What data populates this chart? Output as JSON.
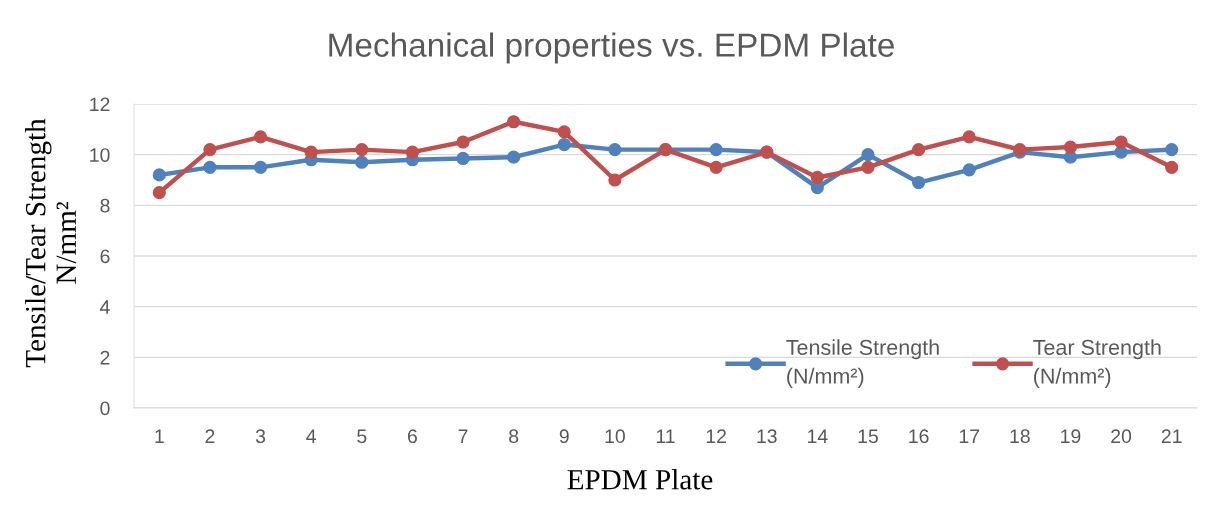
{
  "chart_data": {
    "type": "line",
    "title": "Mechanical properties vs. EPDM Plate",
    "xlabel": "EPDM Plate",
    "ylabel": "Tensile/Tear Strength\nN/mm²",
    "categories": [
      "1",
      "2",
      "3",
      "4",
      "5",
      "6",
      "7",
      "8",
      "9",
      "10",
      "11",
      "12",
      "13",
      "14",
      "15",
      "16",
      "17",
      "18",
      "19",
      "20",
      "21"
    ],
    "series": [
      {
        "name": "Tensile Strength\n(N/mm²)",
        "color": "#4f81bd",
        "values": [
          9.2,
          9.5,
          9.5,
          9.8,
          9.7,
          9.8,
          9.85,
          9.9,
          10.4,
          10.2,
          10.2,
          10.2,
          10.1,
          8.7,
          10.0,
          8.9,
          9.4,
          10.1,
          9.9,
          10.1,
          10.2
        ]
      },
      {
        "name": "Tear Strength\n(N/mm²)",
        "color": "#c0504d",
        "values": [
          8.5,
          10.2,
          10.7,
          10.1,
          10.2,
          10.1,
          10.5,
          11.3,
          10.9,
          9.0,
          10.2,
          9.5,
          10.1,
          9.1,
          9.5,
          10.2,
          10.7,
          10.2,
          10.3,
          10.5,
          9.5
        ]
      }
    ],
    "ylim": [
      0,
      12
    ],
    "yticks": [
      0,
      2,
      4,
      6,
      8,
      10,
      12
    ],
    "grid": "y",
    "legend": "bottom right",
    "marker": "circle",
    "line_style": "solid"
  }
}
